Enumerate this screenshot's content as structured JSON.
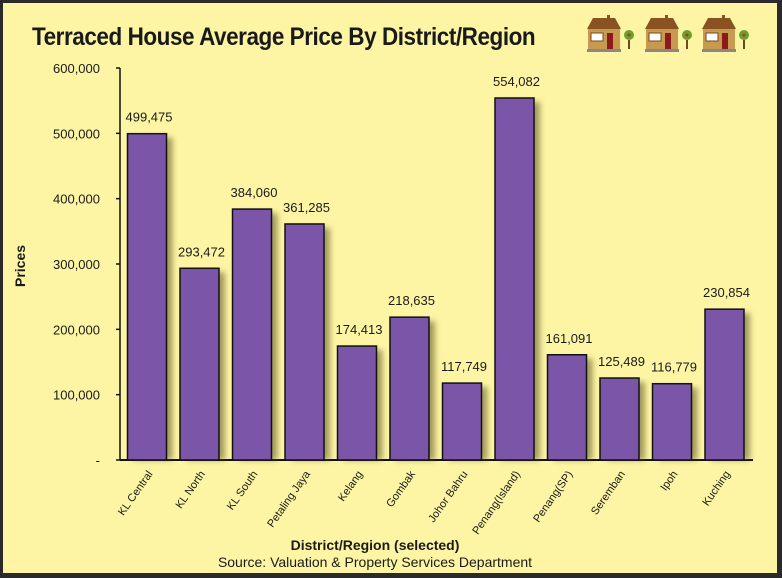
{
  "chart_data": {
    "type": "bar",
    "title": "Terraced House Average Price By District/Region",
    "xlabel": "District/Region (selected)",
    "ylabel": "Prices",
    "source": "Source: Valuation & Property Services Department",
    "ylim": [
      0,
      600000
    ],
    "yticks": [
      0,
      100000,
      200000,
      300000,
      400000,
      500000,
      600000
    ],
    "ytick_labels": [
      "-",
      "100,000",
      "200,000",
      "300,000",
      "400,000",
      "500,000",
      "600,000"
    ],
    "categories": [
      "KL Central",
      "KL North",
      "KL South",
      "Petaling Jaya",
      "Kelang",
      "Gombak",
      "Johor Bahru",
      "Penang(Island)",
      "Penang(SP)",
      "Seremban",
      "Ipoh",
      "Kuching"
    ],
    "values": [
      499475,
      293472,
      384060,
      361285,
      174413,
      218635,
      117749,
      554082,
      161091,
      125489,
      116779,
      230854
    ],
    "value_labels": [
      "499,475",
      "293,472",
      "384,060",
      "361,285",
      "174,413",
      "218,635",
      "117,749",
      "554,082",
      "161,091",
      "125,489",
      "116,779",
      "230,854"
    ],
    "bar_color": "#7a55a8",
    "grid": false
  },
  "decor": {
    "icons": [
      "house-icon",
      "house-icon",
      "house-icon"
    ]
  }
}
